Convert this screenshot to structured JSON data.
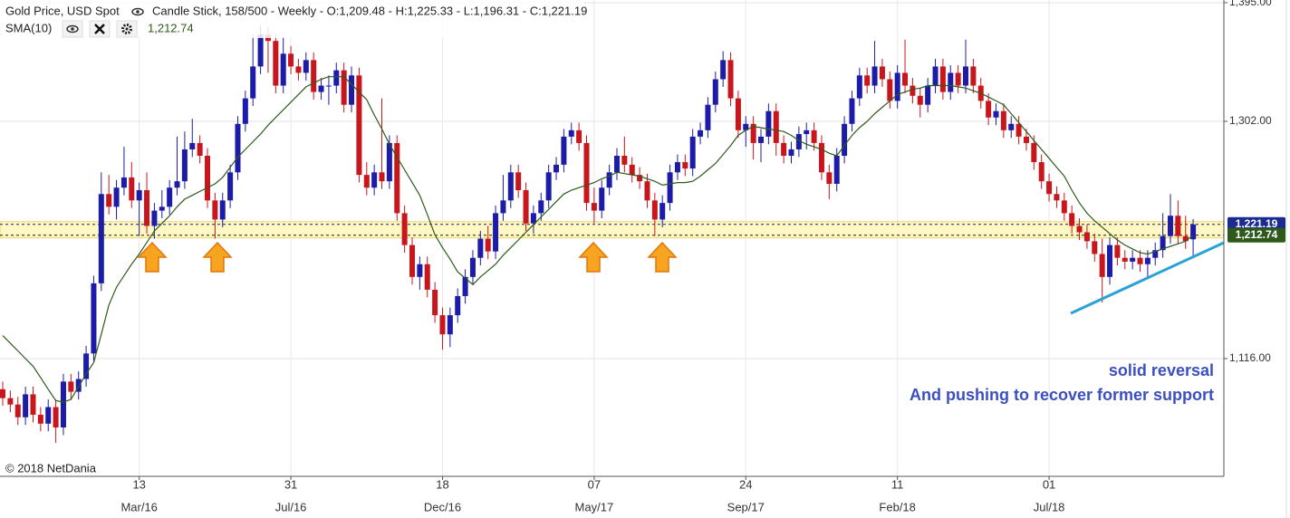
{
  "header": {
    "instrument": "Gold Price, USD Spot",
    "info": "Candle Stick, 158/500 - Weekly - O:1,209.48 - H:1,225.33 - L:1,196.31 - C:1,221.19"
  },
  "chart_data": {
    "type": "candlestick",
    "up_color": "#1c1ca8",
    "down_color": "#c8161d",
    "open": [
      1092,
      1085,
      1080,
      1070,
      1088,
      1072,
      1065,
      1078,
      1062,
      1098,
      1090,
      1100,
      1120,
      1175,
      1245,
      1235,
      1250,
      1258,
      1240,
      1248,
      1220,
      1232,
      1235,
      1250,
      1255,
      1280,
      1285,
      1275,
      1240,
      1225,
      1240,
      1262,
      1300,
      1320,
      1345,
      1370,
      1365,
      1330,
      1355,
      1345,
      1340,
      1350,
      1325,
      1330,
      1330,
      1342,
      1315,
      1338,
      1260,
      1250,
      1262,
      1255,
      1285,
      1230,
      1205,
      1180,
      1190,
      1170,
      1150,
      1135,
      1150,
      1165,
      1180,
      1195,
      1210,
      1200,
      1230,
      1240,
      1262,
      1248,
      1222,
      1230,
      1240,
      1262,
      1268,
      1290,
      1295,
      1285,
      1238,
      1232,
      1250,
      1262,
      1275,
      1268,
      1260,
      1255,
      1240,
      1225,
      1238,
      1262,
      1270,
      1265,
      1290,
      1295,
      1315,
      1335,
      1350,
      1320,
      1295,
      1300,
      1285,
      1290,
      1310,
      1285,
      1275,
      1280,
      1292,
      1295,
      1285,
      1262,
      1253,
      1275,
      1300,
      1320,
      1338,
      1330,
      1345,
      1335,
      1318,
      1340,
      1330,
      1322,
      1315,
      1330,
      1345,
      1325,
      1340,
      1330,
      1345,
      1330,
      1318,
      1305,
      1310,
      1295,
      1300,
      1290,
      1285,
      1270,
      1255,
      1245,
      1240,
      1230,
      1220,
      1215,
      1208,
      1198,
      1180,
      1205,
      1195,
      1192,
      1195,
      1190,
      1195,
      1201,
      1212,
      1228,
      1212,
      1209.48
    ],
    "high": [
      1098,
      1091,
      1086,
      1094,
      1094,
      1078,
      1084,
      1084,
      1104,
      1104,
      1106,
      1126,
      1181,
      1262,
      1260,
      1256,
      1282,
      1270,
      1254,
      1262,
      1238,
      1248,
      1256,
      1290,
      1294,
      1304,
      1291,
      1281,
      1246,
      1246,
      1268,
      1306,
      1326,
      1370,
      1377,
      1376,
      1371,
      1368,
      1361,
      1351,
      1356,
      1356,
      1336,
      1338,
      1348,
      1348,
      1345,
      1344,
      1270,
      1268,
      1320,
      1291,
      1291,
      1236,
      1211,
      1196,
      1196,
      1176,
      1156,
      1156,
      1171,
      1186,
      1201,
      1216,
      1220,
      1236,
      1260,
      1268,
      1268,
      1254,
      1236,
      1246,
      1268,
      1274,
      1296,
      1301,
      1301,
      1291,
      1250,
      1256,
      1268,
      1281,
      1290,
      1274,
      1266,
      1261,
      1246,
      1244,
      1268,
      1276,
      1276,
      1296,
      1301,
      1321,
      1341,
      1357,
      1356,
      1326,
      1306,
      1306,
      1296,
      1316,
      1316,
      1291,
      1286,
      1298,
      1301,
      1301,
      1291,
      1268,
      1281,
      1306,
      1326,
      1344,
      1344,
      1365,
      1351,
      1341,
      1346,
      1366,
      1336,
      1328,
      1336,
      1351,
      1351,
      1346,
      1346,
      1366,
      1351,
      1336,
      1324,
      1316,
      1316,
      1306,
      1306,
      1296,
      1291,
      1276,
      1261,
      1251,
      1246,
      1236,
      1226,
      1221,
      1214,
      1210,
      1211,
      1211,
      1201,
      1201,
      1201,
      1201,
      1207,
      1230,
      1245,
      1240,
      1228,
      1225.33
    ],
    "low": [
      1079,
      1074,
      1064,
      1064,
      1066,
      1059,
      1059,
      1050,
      1056,
      1084,
      1084,
      1094,
      1114,
      1169,
      1229,
      1225,
      1244,
      1234,
      1212,
      1214,
      1210,
      1226,
      1229,
      1244,
      1249,
      1274,
      1269,
      1234,
      1210,
      1219,
      1234,
      1256,
      1294,
      1314,
      1339,
      1340,
      1324,
      1324,
      1339,
      1334,
      1334,
      1319,
      1319,
      1315,
      1324,
      1309,
      1309,
      1254,
      1244,
      1244,
      1249,
      1249,
      1224,
      1199,
      1174,
      1170,
      1164,
      1144,
      1123,
      1125,
      1144,
      1159,
      1174,
      1189,
      1194,
      1194,
      1224,
      1234,
      1242,
      1216,
      1214,
      1224,
      1234,
      1256,
      1262,
      1284,
      1279,
      1232,
      1222,
      1226,
      1244,
      1256,
      1262,
      1254,
      1249,
      1234,
      1212,
      1219,
      1232,
      1256,
      1259,
      1259,
      1284,
      1289,
      1309,
      1329,
      1314,
      1289,
      1282,
      1272,
      1270,
      1284,
      1275,
      1269,
      1269,
      1274,
      1280,
      1279,
      1256,
      1241,
      1247,
      1269,
      1294,
      1314,
      1324,
      1324,
      1329,
      1312,
      1312,
      1324,
      1316,
      1305,
      1309,
      1324,
      1319,
      1319,
      1324,
      1324,
      1324,
      1312,
      1299,
      1299,
      1289,
      1289,
      1284,
      1279,
      1264,
      1249,
      1239,
      1234,
      1224,
      1214,
      1209,
      1202,
      1192,
      1160,
      1174,
      1189,
      1186,
      1186,
      1184,
      1180,
      1189,
      1195,
      1206,
      1206,
      1202,
      1196.31
    ],
    "close": [
      1085,
      1080,
      1070,
      1088,
      1072,
      1065,
      1078,
      1062,
      1098,
      1090,
      1100,
      1120,
      1175,
      1245,
      1235,
      1250,
      1258,
      1240,
      1248,
      1220,
      1232,
      1235,
      1250,
      1255,
      1280,
      1285,
      1275,
      1240,
      1225,
      1240,
      1262,
      1300,
      1320,
      1345,
      1370,
      1365,
      1330,
      1355,
      1345,
      1340,
      1350,
      1325,
      1330,
      1330,
      1342,
      1315,
      1338,
      1260,
      1250,
      1262,
      1255,
      1285,
      1230,
      1205,
      1180,
      1190,
      1170,
      1150,
      1135,
      1150,
      1165,
      1180,
      1195,
      1210,
      1200,
      1230,
      1240,
      1262,
      1248,
      1222,
      1230,
      1240,
      1262,
      1268,
      1290,
      1295,
      1285,
      1238,
      1232,
      1250,
      1262,
      1275,
      1268,
      1260,
      1255,
      1240,
      1225,
      1238,
      1262,
      1270,
      1265,
      1290,
      1295,
      1315,
      1335,
      1350,
      1320,
      1295,
      1300,
      1285,
      1290,
      1310,
      1285,
      1275,
      1280,
      1292,
      1295,
      1285,
      1262,
      1253,
      1275,
      1300,
      1320,
      1338,
      1330,
      1345,
      1335,
      1318,
      1340,
      1330,
      1322,
      1315,
      1330,
      1345,
      1325,
      1340,
      1330,
      1345,
      1330,
      1318,
      1305,
      1310,
      1295,
      1300,
      1290,
      1285,
      1270,
      1255,
      1245,
      1240,
      1230,
      1220,
      1215,
      1208,
      1198,
      1180,
      1205,
      1195,
      1192,
      1195,
      1190,
      1195,
      1201,
      1212,
      1228,
      1212,
      1208,
      1221.19
    ],
    "last_close_label": "1,221.19",
    "overlay": {
      "name": "SMA(10)",
      "color": "#2d5a1b",
      "last_label": "1,212.74",
      "values": [
        1134,
        1128,
        1122,
        1116,
        1110,
        1101,
        1092,
        1083,
        1082,
        1084,
        1094,
        1104,
        1113,
        1135,
        1158,
        1172,
        1181,
        1190,
        1198,
        1207,
        1216,
        1222,
        1228,
        1235,
        1241,
        1244,
        1247,
        1250,
        1253,
        1258,
        1266,
        1274,
        1280,
        1286,
        1292,
        1299,
        1305,
        1311,
        1317,
        1323,
        1329,
        1332,
        1335,
        1337,
        1337,
        1337,
        1331,
        1325,
        1319,
        1307,
        1296,
        1284,
        1274,
        1264,
        1254,
        1244,
        1229,
        1213,
        1203,
        1194,
        1184,
        1179,
        1174,
        1180,
        1185,
        1190,
        1197,
        1203,
        1209,
        1215,
        1221,
        1227,
        1233,
        1239,
        1245,
        1248,
        1250,
        1252,
        1254,
        1257,
        1259,
        1262,
        1261,
        1260,
        1259,
        1257,
        1255,
        1252,
        1253,
        1254,
        1254,
        1255,
        1259,
        1264,
        1269,
        1276,
        1283,
        1291,
        1295,
        1298,
        1297,
        1296,
        1295,
        1294,
        1291,
        1287,
        1284,
        1282,
        1280,
        1277,
        1275,
        1283,
        1291,
        1297,
        1302,
        1308,
        1313,
        1318,
        1323,
        1325,
        1327,
        1328,
        1330,
        1330,
        1330,
        1330,
        1329,
        1328,
        1326,
        1324,
        1321,
        1318,
        1315,
        1308,
        1301,
        1294,
        1287,
        1280,
        1273,
        1266,
        1259,
        1248,
        1238,
        1230,
        1224,
        1219,
        1214,
        1209,
        1205,
        1202,
        1199,
        1198,
        1200,
        1202,
        1204,
        1206,
        1208,
        1212.74
      ]
    },
    "xlim": [
      -0.36,
      161.05
    ],
    "xticks": [
      {
        "value": 18,
        "label": "13"
      },
      {
        "value": 38,
        "label": "31"
      },
      {
        "value": 58,
        "label": "18"
      },
      {
        "value": 78,
        "label": "07"
      },
      {
        "value": 98,
        "label": "24"
      },
      {
        "value": 118,
        "label": "11"
      },
      {
        "value": 138,
        "label": "01"
      }
    ],
    "xticks_secondary": [
      {
        "value": 18,
        "label": "Mar/16"
      },
      {
        "value": 38,
        "label": "Jul/16"
      },
      {
        "value": 58,
        "label": "Dec/16"
      },
      {
        "value": 78,
        "label": "May/17"
      },
      {
        "value": 98,
        "label": "Sep/17"
      },
      {
        "value": 118,
        "label": "Feb/18"
      },
      {
        "value": 138,
        "label": "Jul/18"
      }
    ],
    "ylim": [
      1023.7,
      1397.1
    ],
    "yticks": [
      {
        "value": 1116,
        "label": "1,116.00"
      },
      {
        "value": 1302,
        "label": "1,302.00"
      },
      {
        "value": 1395,
        "label": "1,395.00"
      }
    ],
    "grid": true,
    "annotations": [
      "solid reversal",
      "And pushing to recover former support"
    ],
    "copyright": "© 2018 NetDania"
  }
}
